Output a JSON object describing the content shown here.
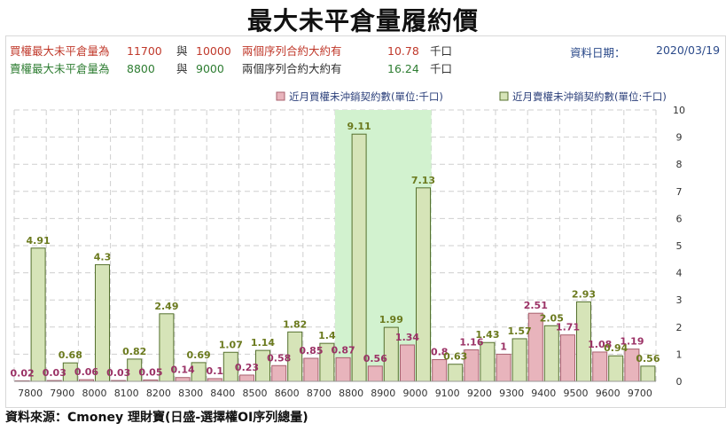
{
  "title": "最大未平倉量履約價",
  "header": {
    "call_row": {
      "label": "買權最大未平倉量為",
      "value1": "11700",
      "conj": "與",
      "value2": "10000",
      "desc": "兩個序列合約大約有",
      "amount": "10.78",
      "unit": "千口"
    },
    "put_row": {
      "label": "賣權最大未平倉量為",
      "value1": "8800",
      "conj": "與",
      "value2": "9000",
      "desc": "兩個序列合約大約有",
      "amount": "16.24",
      "unit": "千口"
    },
    "date_label": "資料日期：",
    "date_value": "2020/03/19"
  },
  "source": "資料來源：Cmoney 理財寶(日盛-選擇權OI序列總量)",
  "colors": {
    "call_fill": "#e8b4bc",
    "call_stroke": "#a8606e",
    "put_fill": "#d6e4b8",
    "put_stroke": "#55702e",
    "highlight": "#d2f2cf",
    "call_label": "#9b3266",
    "put_label": "#6b7a1e"
  },
  "chart_data": {
    "type": "bar",
    "categories": [
      "7800",
      "7900",
      "8000",
      "8100",
      "8200",
      "8300",
      "8400",
      "8500",
      "8600",
      "8700",
      "8800",
      "8900",
      "9000",
      "9100",
      "9200",
      "9300",
      "9400",
      "9500",
      "9600",
      "9700"
    ],
    "series": [
      {
        "name": "近月買權未沖銷契約數(單位:千口)",
        "values": [
          0.02,
          0.03,
          0.06,
          0.03,
          0.05,
          0.14,
          0.1,
          0.23,
          0.58,
          0.85,
          0.87,
          0.56,
          1.34,
          0.8,
          1.16,
          1,
          2.51,
          1.71,
          1.08,
          1.19
        ]
      },
      {
        "name": "近月賣權未沖銷契約數(單位:千口)",
        "values": [
          4.91,
          0.68,
          4.3,
          0.82,
          2.49,
          0.69,
          1.07,
          1.14,
          1.82,
          1.4,
          9.11,
          1.99,
          7.13,
          0.63,
          1.43,
          1.57,
          2.05,
          2.93,
          0.94,
          0.56
        ]
      }
    ],
    "y_ticks": [
      "0",
      "1",
      "2",
      "3",
      "4",
      "5",
      "6",
      "7",
      "8",
      "9",
      "10"
    ],
    "ylim": [
      0,
      10
    ],
    "highlight_categories": [
      "8800",
      "8900",
      "9000"
    ],
    "grid": true,
    "legend_position": "top-right"
  }
}
